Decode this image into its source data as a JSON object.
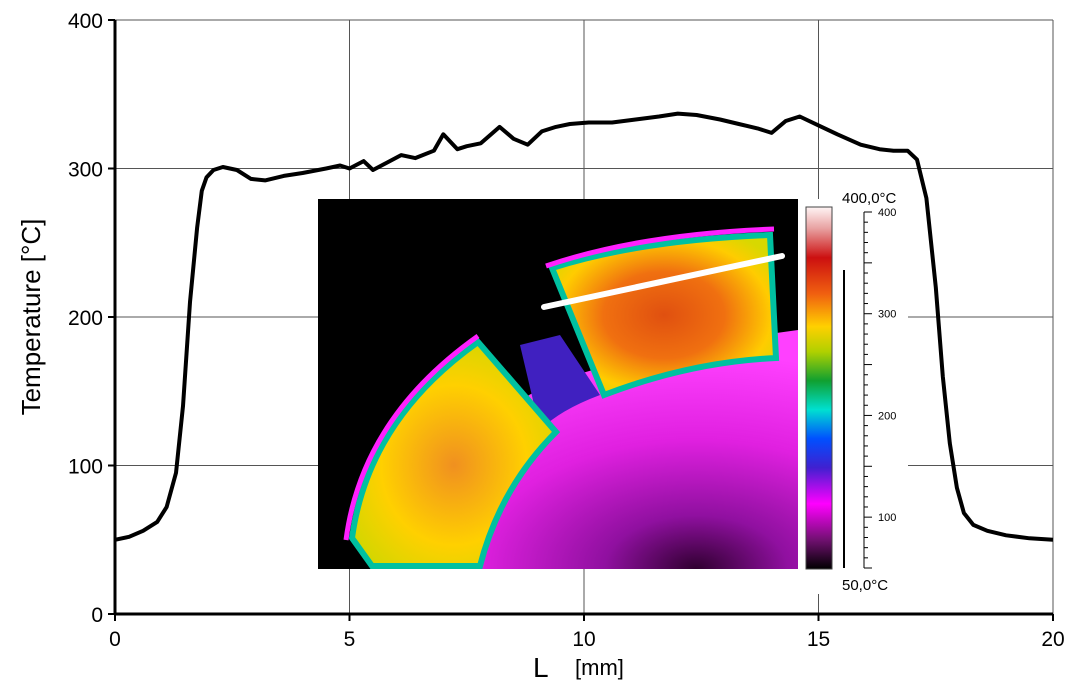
{
  "chart_data": {
    "type": "line",
    "xlabel": "L",
    "xlabel_unit": "[mm]",
    "ylabel": "Temperature [°C]",
    "xlim": [
      0,
      20
    ],
    "ylim": [
      0,
      400
    ],
    "xticks": [
      0,
      5,
      10,
      15,
      20
    ],
    "yticks": [
      0,
      100,
      200,
      300,
      400
    ],
    "grid": true,
    "series": [
      {
        "color": "#000000",
        "x": [
          0,
          0.3,
          0.6,
          0.9,
          1.1,
          1.3,
          1.45,
          1.6,
          1.75,
          1.85,
          1.95,
          2.1,
          2.3,
          2.6,
          2.9,
          3.2,
          3.6,
          4.0,
          4.5,
          4.8,
          5.0,
          5.3,
          5.5,
          5.8,
          6.1,
          6.4,
          6.8,
          7.0,
          7.3,
          7.5,
          7.8,
          8.2,
          8.5,
          8.8,
          9.1,
          9.4,
          9.7,
          10.1,
          10.6,
          11.1,
          11.6,
          12.0,
          12.4,
          12.9,
          13.3,
          13.7,
          14.0,
          14.3,
          14.6,
          15.0,
          15.4,
          15.9,
          16.3,
          16.6,
          16.9,
          17.1,
          17.3,
          17.5,
          17.65,
          17.8,
          17.95,
          18.1,
          18.3,
          18.6,
          19.0,
          19.5,
          20.0
        ],
        "values": [
          50,
          52,
          56,
          62,
          72,
          95,
          140,
          210,
          260,
          285,
          294,
          299,
          301,
          299,
          293,
          292,
          295,
          297,
          300,
          302,
          300,
          305,
          299,
          304,
          309,
          307,
          312,
          323,
          313,
          315,
          317,
          328,
          320,
          316,
          325,
          328,
          330,
          331,
          331,
          333,
          335,
          337,
          336,
          333,
          330,
          327,
          324,
          332,
          335,
          329,
          323,
          316,
          313,
          312,
          312,
          306,
          280,
          220,
          160,
          115,
          85,
          68,
          60,
          56,
          53,
          51,
          50
        ]
      }
    ]
  },
  "inset": {
    "scale_max_label": "400,0°C",
    "scale_min_label": "50,0°C",
    "colorbar_ticks": [
      "400",
      "300",
      "200",
      "100"
    ]
  }
}
